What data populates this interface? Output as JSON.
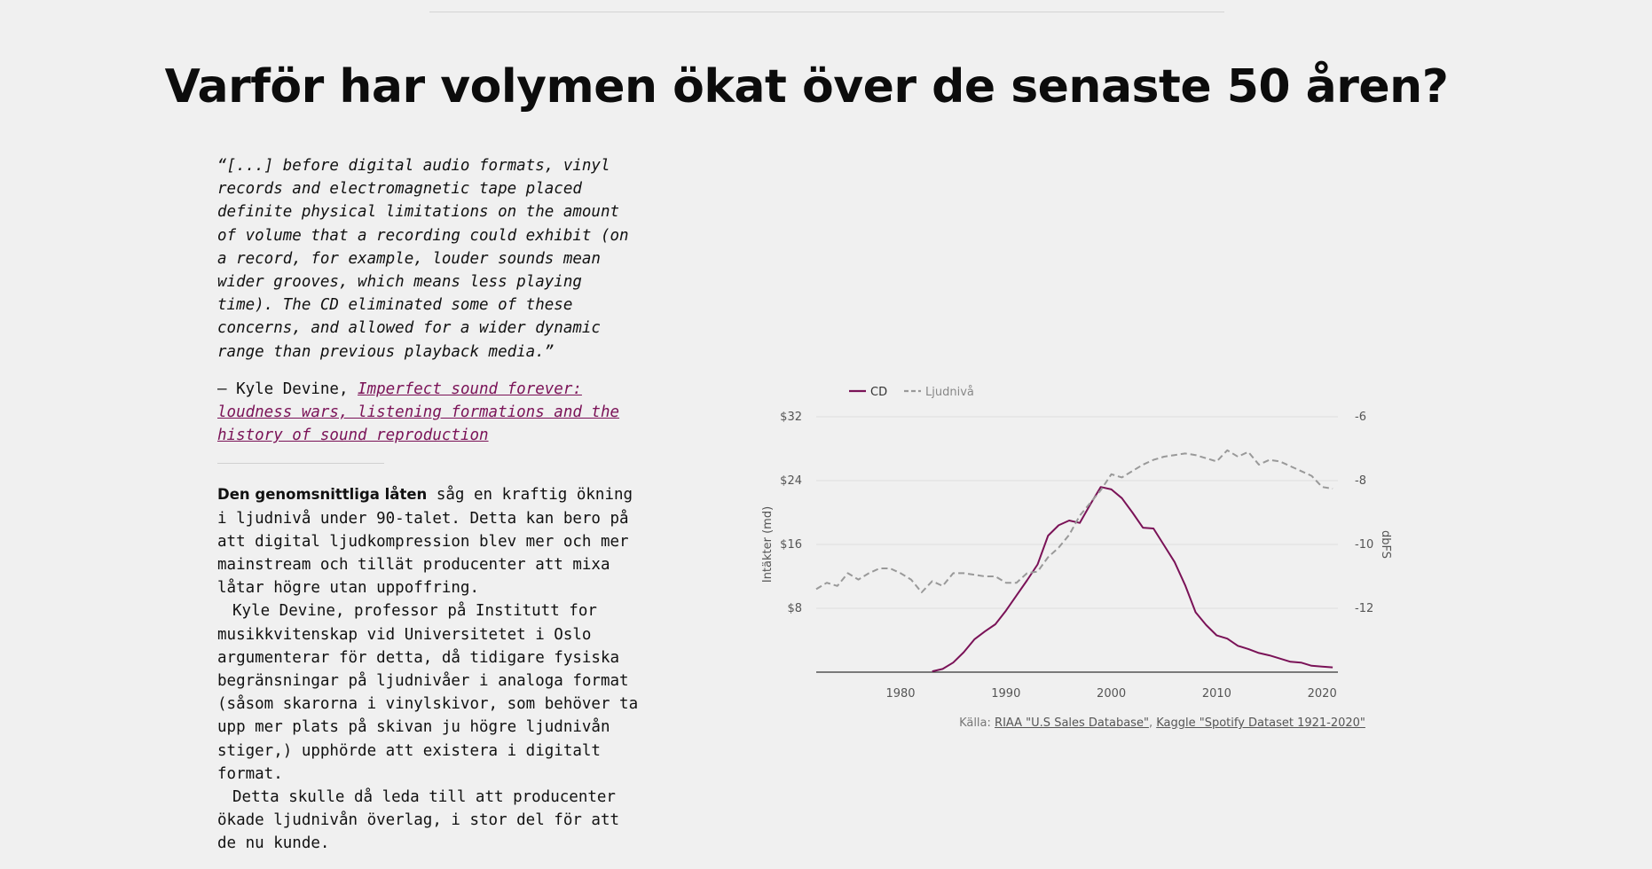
{
  "page": {
    "title": "Varför har volymen ökat över de senaste 50 åren?"
  },
  "quote": {
    "text": "“[...] before digital audio formats, vinyl records and electromagnetic tape placed definite physical limitations on the amount of volume that a recording could exhibit (on a record, for example, louder sounds mean wider grooves, which means less playing time). The CD eliminated some of these concerns, and allowed for a wider dynamic range than previous playback media.”",
    "attribution_prefix": "— Kyle Devine, ",
    "source_title": "Imperfect sound forever: loudness wars, listening formations and the history of sound reproduction"
  },
  "body": {
    "lead": "Den genomsnittliga låten",
    "p1_rest": " såg en kraftig ökning i ljudnivå under 90-talet. Detta kan bero på att digital ljudkompression blev mer och mer mainstream och tillät producenter att mixa låtar högre utan uppoffring.",
    "p2": "Kyle Devine, professor på Institutt for musikkvitenskap vid Universitetet i Oslo argumenterar för detta, då tidigare fysiska begränsningar på ljudnivåer i analoga format (såsom skarorna i vinylskivor, som behöver ta upp mer plats på skivan ju högre ljudnivån stiger,) upphörde att existera i digitalt format.",
    "p3": "Detta skulle då leda till att producenter ökade ljudnivån överlag, i stor del för att de nu kunde."
  },
  "source": {
    "prefix": "Källa: ",
    "link1": "RIAA \"U.S Sales Database\"",
    "sep": ", ",
    "link2": "Kaggle \"Spotify Dataset 1921-2020\""
  },
  "chart_data": {
    "type": "line",
    "legend_position": "top-left",
    "grid": true,
    "xlabel": "",
    "ylabel": "Intäkter (md)",
    "y2label": "dbFS",
    "xlim": [
      1972,
      2021.5
    ],
    "ylim": [
      0,
      32
    ],
    "y2lim": [
      -14,
      -6
    ],
    "x_ticks": [
      1980,
      1990,
      2000,
      2010,
      2020
    ],
    "y_ticks": [
      8,
      16,
      24,
      32
    ],
    "y_tick_labels": [
      "$8",
      "$16",
      "$24",
      "$32"
    ],
    "y2_ticks": [
      -12,
      -10,
      -8,
      -6
    ],
    "y2_tick_labels": [
      "-12",
      "-10",
      "-8",
      "-6"
    ],
    "colors": {
      "cd": "#7a1257",
      "loudness": "#999999"
    },
    "series": [
      {
        "name": "CD",
        "axis": "left",
        "style": "solid",
        "x": [
          1983,
          1984,
          1985,
          1986,
          1987,
          1988,
          1989,
          1990,
          1991,
          1992,
          1993,
          1994,
          1995,
          1996,
          1997,
          1998,
          1999,
          2000,
          2001,
          2002,
          2003,
          2004,
          2005,
          2006,
          2007,
          2008,
          2009,
          2010,
          2011,
          2012,
          2013,
          2014,
          2015,
          2016,
          2017,
          2018,
          2019,
          2020,
          2021
        ],
        "values": [
          0.1,
          0.4,
          1.2,
          2.5,
          4.1,
          5.1,
          6.0,
          7.7,
          9.6,
          11.5,
          13.5,
          17.1,
          18.4,
          19.0,
          18.7,
          21.0,
          23.2,
          22.9,
          21.8,
          20.0,
          18.1,
          18.0,
          15.9,
          13.8,
          10.9,
          7.5,
          5.9,
          4.6,
          4.2,
          3.3,
          2.9,
          2.4,
          2.1,
          1.7,
          1.3,
          1.2,
          0.8,
          0.7,
          0.6
        ]
      },
      {
        "name": "Ljudnivå",
        "axis": "right",
        "style": "dashed",
        "x": [
          1972,
          1973,
          1974,
          1975,
          1976,
          1977,
          1978,
          1979,
          1980,
          1981,
          1982,
          1983,
          1984,
          1985,
          1986,
          1987,
          1988,
          1989,
          1990,
          1991,
          1992,
          1993,
          1994,
          1995,
          1996,
          1997,
          1998,
          1999,
          2000,
          2001,
          2002,
          2003,
          2004,
          2005,
          2006,
          2007,
          2008,
          2009,
          2010,
          2011,
          2012,
          2013,
          2014,
          2015,
          2016,
          2017,
          2018,
          2019,
          2020,
          2021
        ],
        "values": [
          -11.4,
          -11.2,
          -11.3,
          -10.9,
          -11.1,
          -10.9,
          -10.75,
          -10.75,
          -10.9,
          -11.1,
          -11.5,
          -11.15,
          -11.3,
          -10.9,
          -10.9,
          -10.95,
          -11.0,
          -11.0,
          -11.2,
          -11.2,
          -10.9,
          -10.85,
          -10.4,
          -10.1,
          -9.7,
          -9.1,
          -8.7,
          -8.3,
          -7.8,
          -7.9,
          -7.7,
          -7.5,
          -7.35,
          -7.25,
          -7.2,
          -7.15,
          -7.2,
          -7.3,
          -7.4,
          -7.05,
          -7.25,
          -7.1,
          -7.5,
          -7.35,
          -7.4,
          -7.55,
          -7.7,
          -7.85,
          -8.2,
          -8.25
        ]
      }
    ]
  }
}
